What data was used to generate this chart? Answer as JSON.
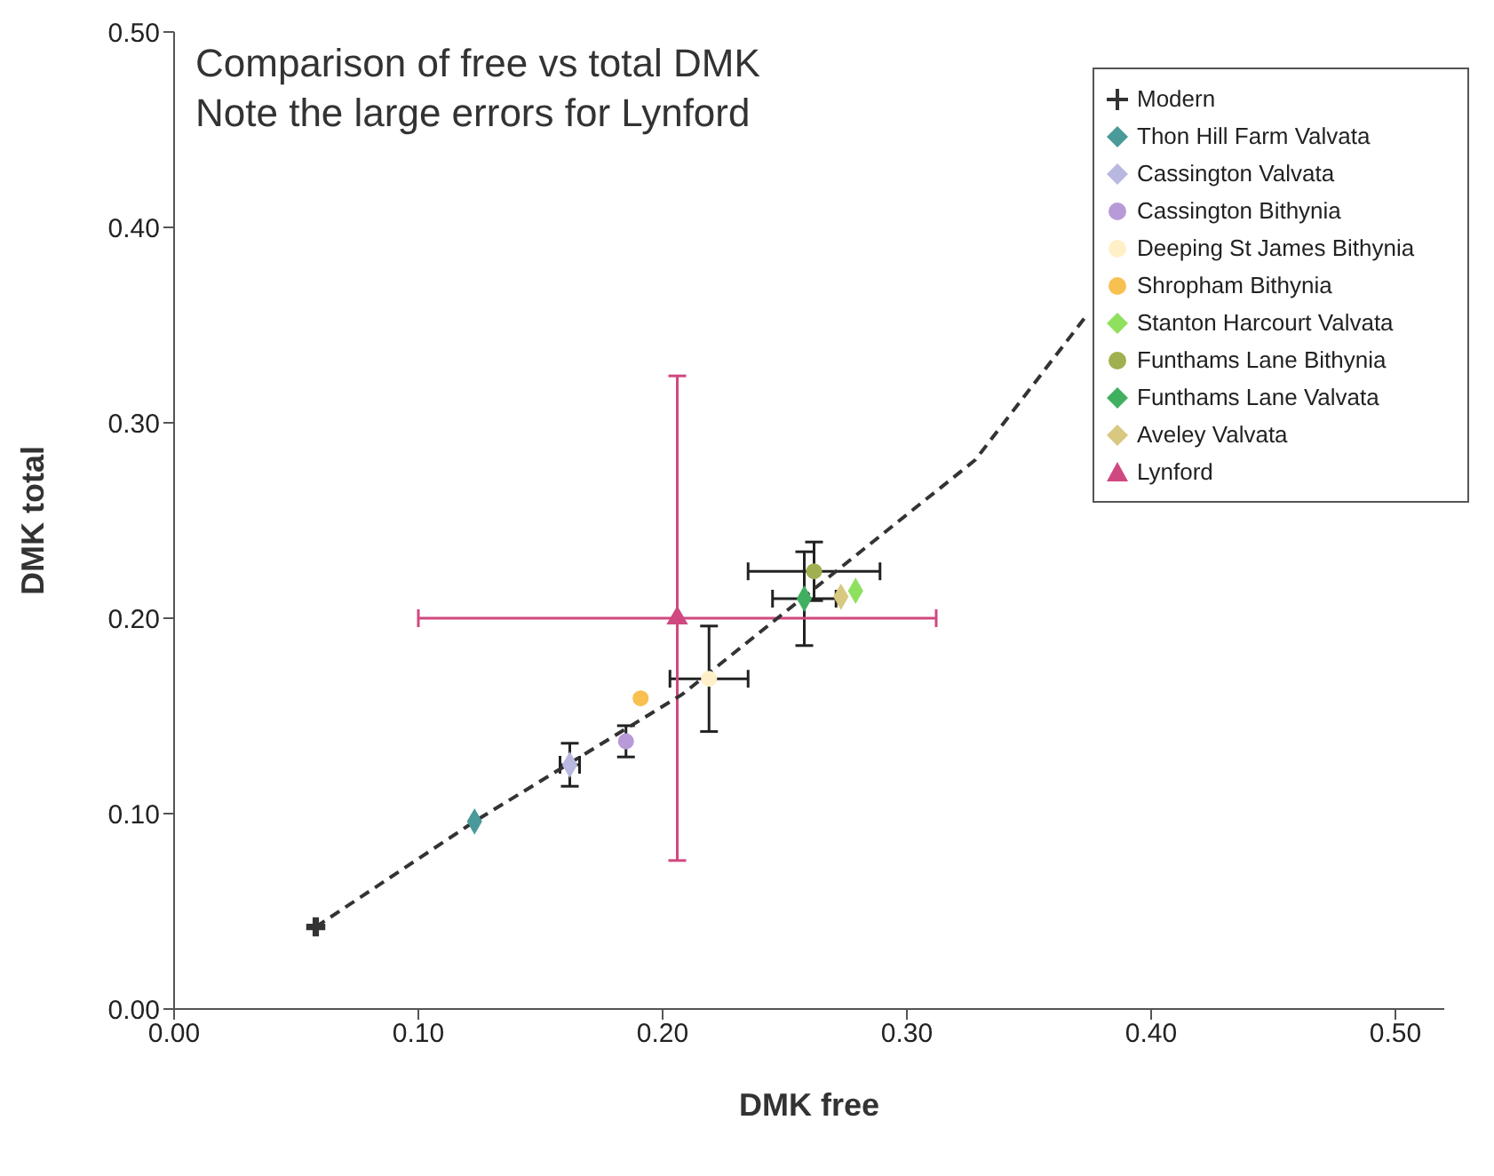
{
  "chart_data": {
    "type": "scatter",
    "title": "Comparison of free vs total DMK",
    "subtitle": "Note the large errors for Lynford",
    "xlabel": "DMK free",
    "ylabel": "DMK total",
    "xlim": [
      0,
      0.52
    ],
    "ylim": [
      0,
      0.5
    ],
    "xticks": [
      {
        "value": 0,
        "label": "0.00"
      },
      {
        "value": 0.1,
        "label": "0.10"
      },
      {
        "value": 0.2,
        "label": "0.20"
      },
      {
        "value": 0.3,
        "label": "0.30"
      },
      {
        "value": 0.4,
        "label": "0.40"
      },
      {
        "value": 0.5,
        "label": "0.50"
      }
    ],
    "yticks": [
      {
        "value": 0,
        "label": "0.00"
      },
      {
        "value": 0.1,
        "label": "0.10"
      },
      {
        "value": 0.2,
        "label": "0.20"
      },
      {
        "value": 0.3,
        "label": "0.30"
      },
      {
        "value": 0.4,
        "label": "0.40"
      },
      {
        "value": 0.5,
        "label": "0.50"
      }
    ],
    "grid": false,
    "legend": "top right",
    "series": [
      {
        "type": "line",
        "color": "#333333",
        "line_style": "dashed",
        "marker": "none",
        "x": [
          0.058,
          0.123,
          0.208,
          0.328,
          0.373
        ],
        "values": [
          0.042,
          0.096,
          0.161,
          0.281,
          0.354
        ]
      },
      {
        "name": "Modern",
        "color": "#333333",
        "marker": "cross",
        "x": [
          0.058
        ],
        "values": [
          0.042
        ]
      },
      {
        "name": "Thon Hill Farm Valvata",
        "color": "#4a9a9a",
        "marker": "diamond",
        "x": [
          0.123
        ],
        "values": [
          0.096
        ]
      },
      {
        "name": "Cassington Valvata",
        "color": "#b8b8e0",
        "marker": "diamond",
        "x": [
          0.162
        ],
        "values": [
          0.125
        ],
        "errors": [
          0.011
        ],
        "xerrors": [
          0.004
        ]
      },
      {
        "name": "Cassington Bithynia",
        "color": "#b89ad8",
        "marker": "circle",
        "x": [
          0.185
        ],
        "values": [
          0.137
        ],
        "errors": [
          0.008
        ]
      },
      {
        "name": "Deeping St James Bithynia",
        "color": "#fff0c8",
        "marker": "circle",
        "x": [
          0.219
        ],
        "values": [
          0.169
        ],
        "errors": [
          0.027
        ],
        "xerrors": [
          0.016
        ]
      },
      {
        "name": "Shropham Bithynia",
        "color": "#f8c050",
        "marker": "circle",
        "x": [
          0.191
        ],
        "values": [
          0.159
        ]
      },
      {
        "name": "Stanton Harcourt Valvata",
        "color": "#90e060",
        "marker": "diamond",
        "x": [
          0.279
        ],
        "values": [
          0.214
        ]
      },
      {
        "name": "Funthams Lane Bithynia",
        "color": "#a0b050",
        "marker": "circle",
        "x": [
          0.262
        ],
        "values": [
          0.224
        ],
        "errors": [
          0.015
        ],
        "xerrors": [
          0.027
        ]
      },
      {
        "name": "Funthams Lane Valvata",
        "color": "#40b060",
        "marker": "diamond",
        "x": [
          0.258
        ],
        "values": [
          0.21
        ],
        "errors": [
          0.024
        ],
        "xerrors": [
          0.013
        ]
      },
      {
        "name": "Aveley Valvata",
        "color": "#d8c880",
        "marker": "diamond",
        "x": [
          0.273
        ],
        "values": [
          0.211
        ]
      },
      {
        "name": "Lynford",
        "color": "#d04880",
        "marker": "triangle",
        "x": [
          0.206
        ],
        "values": [
          0.2
        ],
        "errors": [
          0.124
        ],
        "xerrors": [
          0.106
        ]
      }
    ]
  }
}
